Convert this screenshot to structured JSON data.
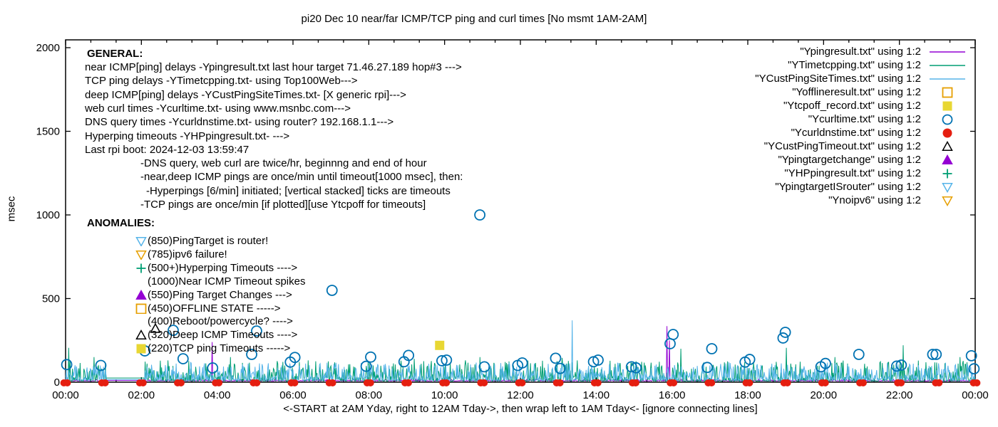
{
  "title": "pi20 Dec 10  near/far ICMP/TCP ping and curl times [No msmt 1AM-2AM]",
  "colors": {
    "purple": "#9400d3",
    "green": "#009e73",
    "skyblue": "#56b4e9",
    "orange": "#e69f00",
    "yellow": "#e8d733",
    "blue": "#0072b2",
    "red": "#e51e10",
    "black": "#000000"
  },
  "y_axis": {
    "label": "msec",
    "ticks": [
      0,
      500,
      1000,
      1500,
      2000
    ]
  },
  "x_axis": {
    "labels": [
      "00:00",
      "02:00",
      "04:00",
      "06:00",
      "08:00",
      "10:00",
      "12:00",
      "14:00",
      "16:00",
      "18:00",
      "20:00",
      "22:00",
      "00:00"
    ],
    "note": "<-START at 2AM Yday, right to 12AM Tday->, then wrap left to 1AM Tday<- [ignore connecting lines]"
  },
  "legend": {
    "items": [
      {
        "label": "\"Ypingresult.txt\" using 1:2",
        "sample": "line",
        "color": "purple"
      },
      {
        "label": "\"YTimetcpping.txt\" using 1:2",
        "sample": "line",
        "color": "green"
      },
      {
        "label": "\"YCustPingSiteTimes.txt\" using 1:2",
        "sample": "line",
        "color": "skyblue"
      },
      {
        "label": "\"Yofflineresult.txt\" using 1:2",
        "sample": "square-open",
        "color": "orange"
      },
      {
        "label": "\"Ytcpoff_record.txt\" using 1:2",
        "sample": "square-filled",
        "color": "yellow"
      },
      {
        "label": "\"Ycurltime.txt\" using 1:2",
        "sample": "circle-open",
        "color": "blue"
      },
      {
        "label": "\"Ycurldnstime.txt\" using 1:2",
        "sample": "circle-filled",
        "color": "red"
      },
      {
        "label": "\"YCustPingTimeout.txt\" using 1:2",
        "sample": "tri-up-open",
        "color": "black"
      },
      {
        "label": "\"Ypingtargetchange\" using 1:2",
        "sample": "tri-up-filled",
        "color": "purple"
      },
      {
        "label": "\"YHPpingresult.txt\" using 1:2",
        "sample": "plus",
        "color": "green"
      },
      {
        "label": "\"YpingtargetISrouter\" using 1:2",
        "sample": "tri-down-open",
        "color": "skyblue"
      },
      {
        "label": "\"Ynoipv6\" using 1:2",
        "sample": "tri-down-open",
        "color": "orange"
      }
    ]
  },
  "general": {
    "heading": "GENERAL:",
    "lines": [
      {
        "text": "near ICMP[ping] delays -Ypingresult.txt last hour target 71.46.27.189 hop#3 --->",
        "indent": 0
      },
      {
        "text": "TCP ping delays -YTimetcpping.txt- using Top100Web--->",
        "indent": 0
      },
      {
        "text": "deep ICMP[ping] delays -YCustPingSiteTimes.txt- [X generic rpi]--->",
        "indent": 0
      },
      {
        "text": "web curl times -Ycurltime.txt- using www.msnbc.com--->",
        "indent": 0
      },
      {
        "text": "DNS query times -Ycurldnstime.txt- using router? 192.168.1.1--->",
        "indent": 0
      },
      {
        "text": "Hyperping timeouts -YHPpingresult.txt- --->",
        "indent": 0
      },
      {
        "text": "Last rpi boot: 2024-12-03 13:59:47",
        "indent": 0
      },
      {
        "text": "-DNS query, web curl are twice/hr, beginnng and end of hour",
        "indent": 1
      },
      {
        "text": "-near,deep ICMP pings are once/min until timeout[1000 msec], then:",
        "indent": 1
      },
      {
        "text": "-Hyperpings [6/min] initiated; [vertical stacked] ticks are timeouts",
        "indent": 2
      },
      {
        "text": "-TCP pings are once/min [if plotted][use Ytcpoff for timeouts]",
        "indent": 1
      }
    ]
  },
  "anomalies": {
    "heading": "ANOMALIES:",
    "items": [
      {
        "marker": "tri-down-open",
        "color": "skyblue",
        "text": "(850)PingTarget is router!"
      },
      {
        "marker": "tri-down-open",
        "color": "orange",
        "text": "(785)ipv6 failure!"
      },
      {
        "marker": "plus",
        "color": "green",
        "text": "(500+)Hyperping Timeouts ---->"
      },
      {
        "marker": "none",
        "color": "black",
        "text": "(1000)Near ICMP Timeout spikes"
      },
      {
        "marker": "tri-up-filled",
        "color": "purple",
        "text": "(550)Ping Target Changes --->"
      },
      {
        "marker": "square-open",
        "color": "orange",
        "text": "(450)OFFLINE STATE ----->"
      },
      {
        "marker": "none",
        "color": "black",
        "text": "(400)Reboot/powercycle? ---->"
      },
      {
        "marker": "tri-up-open",
        "color": "black",
        "text": "(320)Deep ICMP Timeouts ---->"
      },
      {
        "marker": "square-filled",
        "color": "yellow",
        "text": "(220)TCP ping Timeouts ----->"
      }
    ]
  },
  "chart_data": {
    "type": "line",
    "x_unit": "hours",
    "xlim": [
      0,
      24
    ],
    "ylim": [
      0,
      2000
    ],
    "grid": false,
    "noise_seed": 1337,
    "no_measurement_window_hours": [
      1.08,
      2.08
    ],
    "series": [
      {
        "name": "Ypingresult.txt",
        "color": "purple",
        "base": 7,
        "amp": 10,
        "pow": 3,
        "flat_value": 10,
        "spikes": [
          [
            3.87,
            240
          ],
          [
            15.87,
            335
          ],
          [
            15.93,
            250
          ]
        ]
      },
      {
        "name": "YTimetcpping.txt",
        "color": "green",
        "base": 6,
        "amp": 125,
        "pow": 3.2,
        "flat_value": 25,
        "spikes": [
          [
            0.08,
            205
          ],
          [
            0.75,
            150
          ],
          [
            4.35,
            150
          ],
          [
            6.4,
            130
          ],
          [
            9.2,
            140
          ],
          [
            10.93,
            150
          ],
          [
            13.1,
            145
          ],
          [
            16.23,
            200
          ],
          [
            19.02,
            205
          ],
          [
            20.3,
            150
          ],
          [
            22.1,
            221
          ],
          [
            23.6,
            150
          ]
        ]
      },
      {
        "name": "YCustPingSiteTimes.txt",
        "color": "skyblue",
        "base": 12,
        "amp": 105,
        "pow": 2.8,
        "flat_value": 16,
        "spikes": [
          [
            3.3,
            120
          ],
          [
            7.8,
            115
          ],
          [
            13.37,
            370
          ],
          [
            17.5,
            120
          ]
        ]
      }
    ],
    "markers": [
      {
        "name": "Ycurltime.txt",
        "marker": "circle-open",
        "color": "blue",
        "size": 14,
        "points": [
          [
            0.03,
            105
          ],
          [
            0.93,
            100
          ],
          [
            2.09,
            187
          ],
          [
            2.84,
            310
          ],
          [
            3.1,
            140
          ],
          [
            3.88,
            85
          ],
          [
            4.91,
            166
          ],
          [
            5.04,
            306
          ],
          [
            5.93,
            120
          ],
          [
            6.05,
            148
          ],
          [
            7.03,
            549
          ],
          [
            7.93,
            95
          ],
          [
            8.05,
            150
          ],
          [
            8.93,
            122
          ],
          [
            9.05,
            160
          ],
          [
            9.93,
            128
          ],
          [
            10.05,
            132
          ],
          [
            10.93,
            1000
          ],
          [
            11.05,
            92
          ],
          [
            11.93,
            100
          ],
          [
            12.05,
            115
          ],
          [
            12.93,
            143
          ],
          [
            13.05,
            82
          ],
          [
            13.93,
            122
          ],
          [
            14.05,
            132
          ],
          [
            14.93,
            92
          ],
          [
            15.05,
            86
          ],
          [
            15.95,
            230
          ],
          [
            16.03,
            285
          ],
          [
            16.93,
            88
          ],
          [
            17.05,
            200
          ],
          [
            17.93,
            120
          ],
          [
            18.05,
            136
          ],
          [
            18.93,
            264
          ],
          [
            18.99,
            298
          ],
          [
            19.93,
            92
          ],
          [
            20.05,
            112
          ],
          [
            20.93,
            166
          ],
          [
            21.93,
            96
          ],
          [
            22.05,
            102
          ],
          [
            22.88,
            166
          ],
          [
            22.97,
            166
          ],
          [
            23.9,
            158
          ],
          [
            23.97,
            80
          ]
        ]
      },
      {
        "name": "Ycurldnstime.txt",
        "marker": "dot-pair",
        "color": "red",
        "size": 10,
        "points": [
          [
            0,
            5
          ],
          [
            1,
            5
          ],
          [
            2,
            5
          ],
          [
            3,
            5
          ],
          [
            4,
            5
          ],
          [
            5,
            5
          ],
          [
            6,
            5
          ],
          [
            7,
            5
          ],
          [
            8,
            5
          ],
          [
            9,
            5
          ],
          [
            10,
            5
          ],
          [
            11,
            5
          ],
          [
            12,
            5
          ],
          [
            13,
            5
          ],
          [
            14,
            5
          ],
          [
            15,
            5
          ],
          [
            16,
            5
          ],
          [
            17,
            5
          ],
          [
            18,
            5
          ],
          [
            19,
            5
          ],
          [
            20,
            5
          ],
          [
            21,
            5
          ],
          [
            22,
            5
          ],
          [
            23,
            5
          ],
          [
            24,
            5
          ]
        ]
      },
      {
        "name": "Ytcpoff_record.txt",
        "marker": "square-filled",
        "color": "yellow",
        "size": 13,
        "points": [
          [
            9.87,
            220
          ]
        ]
      },
      {
        "name": "YCustPingTimeout.txt",
        "marker": "tri-up-open",
        "color": "black",
        "size": 13,
        "points": [
          [
            2.37,
            320
          ]
        ]
      }
    ]
  }
}
